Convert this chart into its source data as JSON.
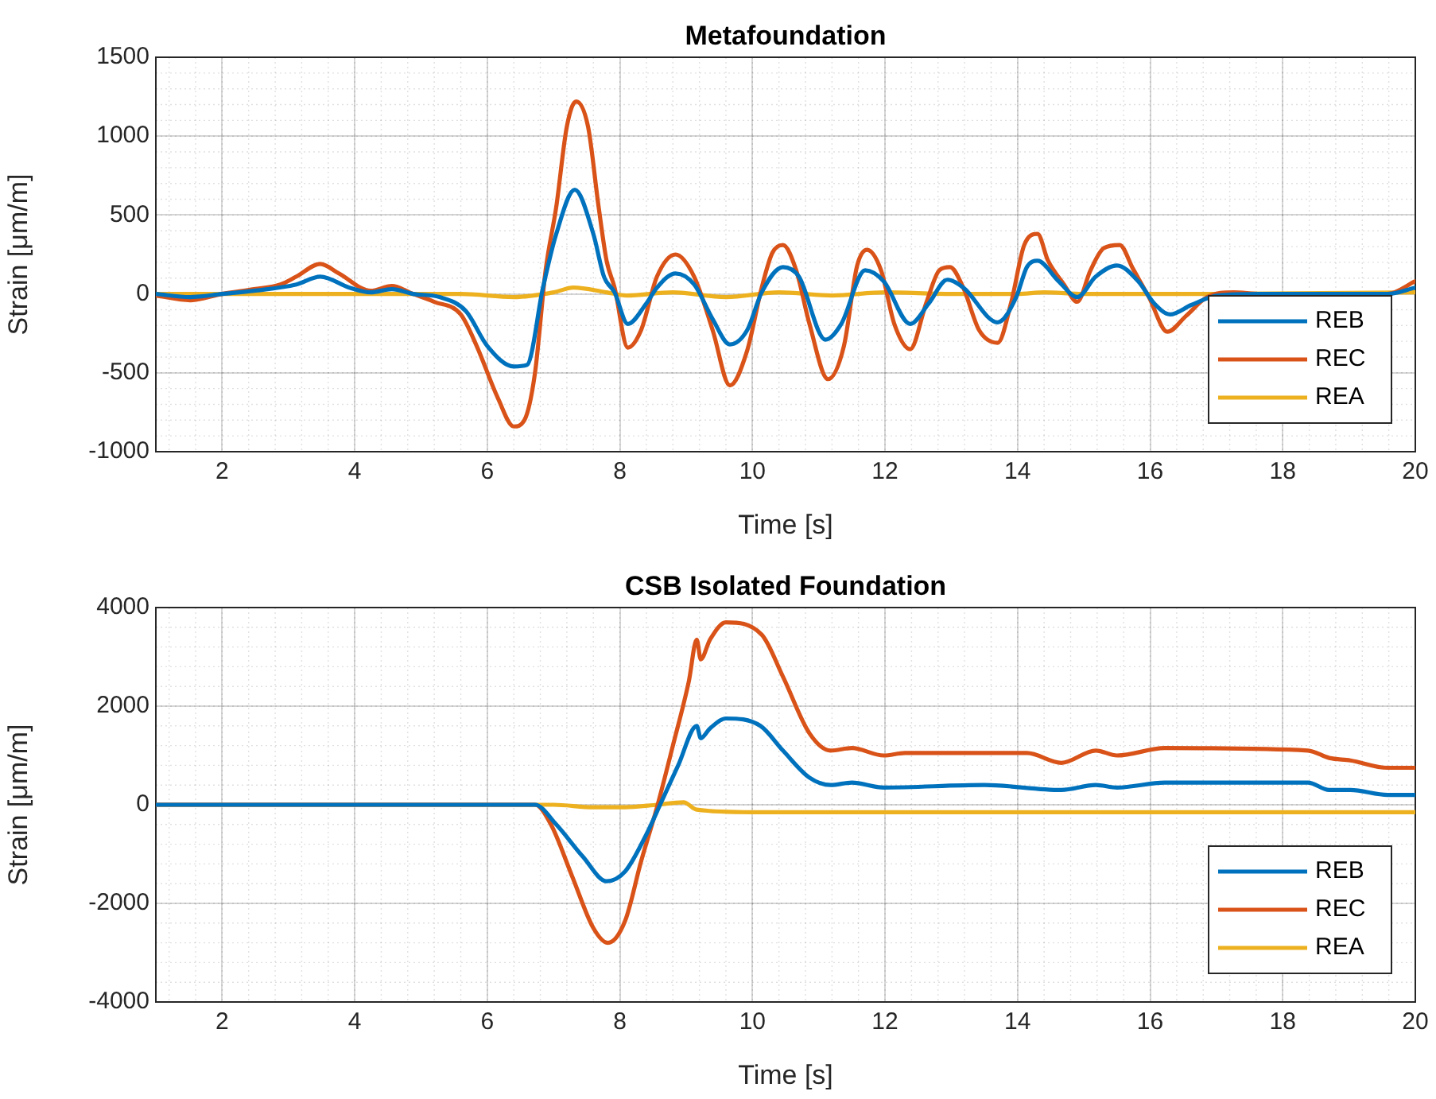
{
  "chart_data": [
    {
      "type": "line",
      "title": "Metafoundation",
      "xlabel": "Time [s]",
      "ylabel": "Strain [μm/m]",
      "xlim": [
        1,
        20
      ],
      "xticks": [
        2,
        4,
        6,
        8,
        10,
        12,
        14,
        16,
        18,
        20
      ],
      "ylim": [
        -1000,
        1500
      ],
      "yticks": [
        -1000,
        -500,
        0,
        500,
        1000,
        1500
      ],
      "grid": true,
      "legend": "bottom right",
      "line_style": "solid",
      "marker": "none",
      "series": [
        {
          "name": "REB",
          "color": "#0072bd",
          "x": [
            1,
            1.52,
            2,
            2.48,
            3.12,
            3.48,
            3.92,
            4.24,
            4.56,
            4.88,
            5.28,
            5.68,
            6,
            6.4,
            6.6,
            6.84,
            7.04,
            7.32,
            7.6,
            7.76,
            7.92,
            8.12,
            8.4,
            8.56,
            8.84,
            9.12,
            9.4,
            9.66,
            9.92,
            10.14,
            10.46,
            10.7,
            11.1,
            11.34,
            11.7,
            11.98,
            12.38,
            12.66,
            12.94,
            13.18,
            13.7,
            13.98,
            14.14,
            14.3,
            14.62,
            14.9,
            15.18,
            15.5,
            15.82,
            16.06,
            16.3,
            16.62,
            17.02,
            17.66,
            19.58,
            20
          ],
          "values": [
            0,
            -20,
            0,
            20,
            60,
            110,
            40,
            10,
            30,
            0,
            -20,
            -110,
            -330,
            -460,
            -450,
            40,
            380,
            660,
            380,
            110,
            10,
            -190,
            -60,
            40,
            130,
            60,
            -160,
            -320,
            -230,
            10,
            170,
            110,
            -290,
            -190,
            150,
            80,
            -190,
            -60,
            90,
            40,
            -180,
            -20,
            170,
            210,
            80,
            -20,
            110,
            180,
            80,
            -60,
            -130,
            -70,
            -10,
            0,
            0,
            40
          ]
        },
        {
          "name": "REC",
          "color": "#d95319",
          "x": [
            1,
            1.52,
            2,
            2.48,
            2.88,
            3.12,
            3.48,
            3.76,
            4.24,
            4.56,
            4.88,
            5.2,
            5.6,
            5.84,
            6.16,
            6.4,
            6.56,
            6.72,
            6.88,
            7.04,
            7.2,
            7.34,
            7.52,
            7.68,
            7.8,
            7.92,
            8.12,
            8.32,
            8.56,
            8.84,
            9.12,
            9.4,
            9.66,
            9.92,
            10.14,
            10.3,
            10.46,
            10.66,
            10.86,
            11.14,
            11.38,
            11.58,
            11.73,
            11.94,
            12.14,
            12.38,
            12.62,
            12.82,
            12.98,
            13.18,
            13.42,
            13.7,
            13.9,
            14.1,
            14.3,
            14.46,
            14.7,
            14.9,
            15.1,
            15.3,
            15.54,
            15.74,
            15.98,
            16.26,
            16.54,
            16.86,
            17.26,
            17.66,
            19.58,
            20
          ],
          "values": [
            -10,
            -40,
            0,
            30,
            60,
            110,
            190,
            130,
            20,
            50,
            0,
            -50,
            -130,
            -330,
            -660,
            -840,
            -800,
            -500,
            150,
            550,
            1060,
            1220,
            1060,
            550,
            210,
            40,
            -340,
            -230,
            110,
            250,
            110,
            -230,
            -580,
            -360,
            40,
            260,
            310,
            150,
            -190,
            -540,
            -330,
            180,
            280,
            150,
            -190,
            -350,
            -60,
            150,
            170,
            40,
            -230,
            -310,
            -60,
            310,
            380,
            210,
            60,
            -50,
            150,
            290,
            310,
            160,
            -20,
            -240,
            -140,
            -20,
            10,
            0,
            0,
            80
          ]
        },
        {
          "name": "REA",
          "color": "#edb120",
          "x": [
            1,
            5,
            5.6,
            6.4,
            7,
            7.3,
            7.8,
            8.1,
            8.8,
            9.6,
            10.4,
            11.2,
            12,
            13,
            14,
            14.4,
            15,
            16,
            17,
            20
          ],
          "values": [
            0,
            0,
            0,
            -20,
            10,
            40,
            10,
            -10,
            10,
            -20,
            10,
            -10,
            10,
            0,
            0,
            10,
            0,
            0,
            0,
            10
          ]
        }
      ]
    },
    {
      "type": "line",
      "title": "CSB Isolated Foundation",
      "xlabel": "Time [s]",
      "ylabel": "Strain [μm/m]",
      "xlim": [
        1,
        20
      ],
      "xticks": [
        2,
        4,
        6,
        8,
        10,
        12,
        14,
        16,
        18,
        20
      ],
      "ylim": [
        -4000,
        4000
      ],
      "yticks": [
        -4000,
        -2000,
        0,
        2000,
        4000
      ],
      "grid": true,
      "legend": "bottom right",
      "line_style": "solid",
      "marker": "none",
      "series": [
        {
          "name": "REB",
          "color": "#0072bd",
          "x": [
            1,
            6.72,
            7.04,
            7.44,
            7.8,
            8.08,
            8.4,
            8.64,
            8.88,
            9.16,
            9.22,
            9.36,
            9.6,
            10.12,
            10.46,
            10.86,
            11.18,
            11.5,
            11.98,
            13.5,
            14.66,
            15.18,
            15.5,
            16.22,
            18.38,
            18.7,
            19.02,
            19.58,
            20
          ],
          "values": [
            0,
            0,
            -400,
            -1050,
            -1550,
            -1350,
            -600,
            100,
            800,
            1600,
            1350,
            1550,
            1750,
            1600,
            1100,
            550,
            400,
            450,
            350,
            400,
            300,
            400,
            350,
            450,
            450,
            300,
            300,
            200,
            200
          ]
        },
        {
          "name": "REC",
          "color": "#d95319",
          "x": [
            1,
            6.72,
            6.96,
            7.28,
            7.6,
            7.82,
            8.08,
            8.32,
            8.56,
            8.8,
            9.04,
            9.16,
            9.22,
            9.36,
            9.6,
            10.14,
            10.46,
            10.86,
            11.18,
            11.5,
            11.98,
            12.3,
            13.5,
            14.14,
            14.66,
            15.18,
            15.5,
            16.22,
            18.38,
            18.7,
            19.02,
            19.58,
            20
          ],
          "values": [
            0,
            0,
            -400,
            -1450,
            -2500,
            -2800,
            -2350,
            -1150,
            -50,
            1200,
            2500,
            3350,
            2950,
            3350,
            3700,
            3450,
            2600,
            1450,
            1100,
            1150,
            1000,
            1050,
            1050,
            1050,
            850,
            1100,
            1000,
            1150,
            1100,
            950,
            900,
            750,
            750
          ]
        },
        {
          "name": "REA",
          "color": "#edb120",
          "x": [
            1,
            7,
            7.6,
            8.08,
            8.56,
            8.96,
            9.16,
            10,
            12,
            16,
            20
          ],
          "values": [
            0,
            0,
            -50,
            -50,
            0,
            50,
            -100,
            -150,
            -150,
            -150,
            -150
          ]
        }
      ]
    }
  ]
}
